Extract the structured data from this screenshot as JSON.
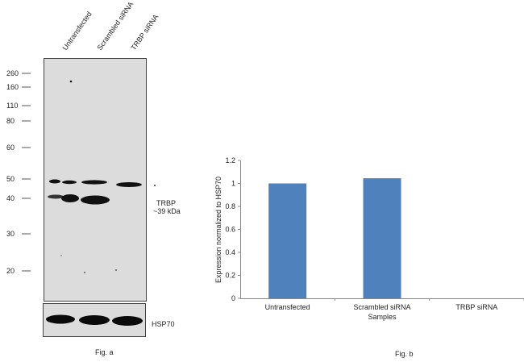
{
  "fig_a": {
    "lane_labels": [
      "Untransfected",
      "Scrambled siRNA",
      "TRBP siRNA"
    ],
    "markers": [
      "260",
      "160",
      "110",
      "80",
      "60",
      "50",
      "40",
      "30",
      "20"
    ],
    "target_label": "TRBP",
    "target_size": "~39 kDa",
    "loading_control": "HSP70",
    "caption": "Fig. a"
  },
  "fig_b": {
    "caption": "Fig. b"
  },
  "chart_data": {
    "type": "bar",
    "categories": [
      "Untransfected",
      "Scrambled siRNA",
      "TRBP siRNA"
    ],
    "values": [
      1.0,
      1.045,
      0.0
    ],
    "title": "",
    "xlabel": "Samples",
    "ylabel": "Expression normalized to HSP70",
    "ylim": [
      0,
      1.2
    ],
    "yticks": [
      "0",
      "0.2",
      "0.4",
      "0.6",
      "0.8",
      "1",
      "1.2"
    ],
    "grid": false,
    "bar_color": "#4f81bd"
  }
}
